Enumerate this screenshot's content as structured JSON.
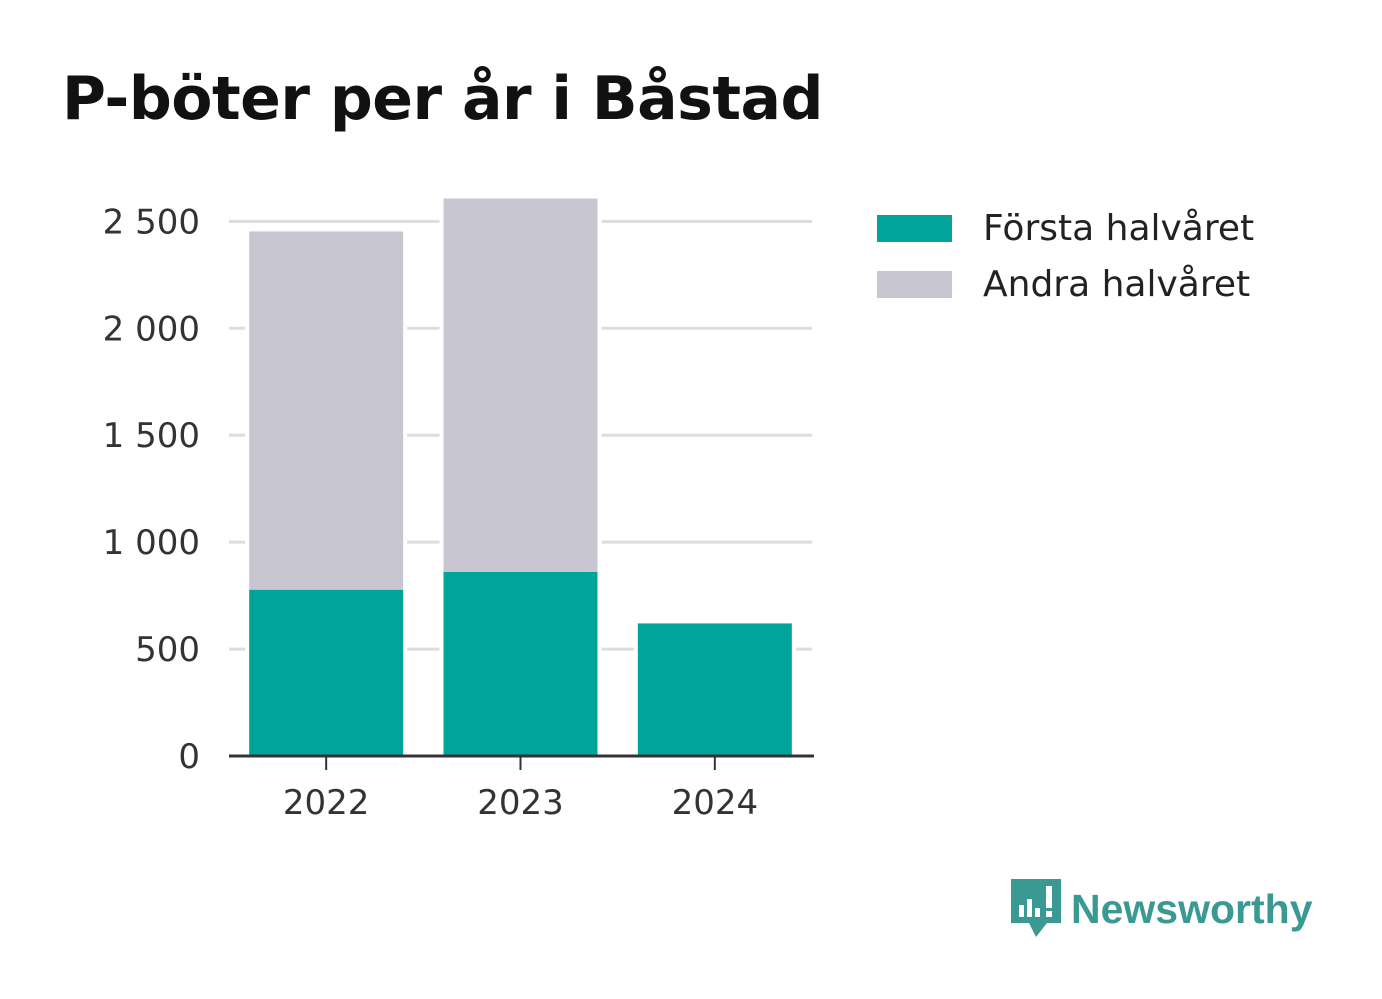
{
  "chart_data": {
    "type": "bar",
    "stacked": true,
    "title": "P-böter per år i Båstad",
    "xlabel": "",
    "ylabel": "",
    "categories": [
      "2022",
      "2023",
      "2024"
    ],
    "series": [
      {
        "name": "Första halvåret",
        "color": "#00a499",
        "values": [
          778,
          862,
          620
        ]
      },
      {
        "name": "Andra halvåret",
        "color": "#c8c7d1",
        "values": [
          1675,
          1745,
          0
        ]
      }
    ],
    "ylim": [
      0,
      2600
    ],
    "yticks": [
      0,
      500,
      1000,
      1500,
      2000,
      2500
    ],
    "ytick_labels": [
      "0",
      "500",
      "1 000",
      "1 500",
      "2 000",
      "2 500"
    ],
    "grid": true,
    "legend_position": "top-right"
  },
  "branding": {
    "label": "Newsworthy",
    "color": "#3a9a93",
    "icon": "speech-bubble-bar-chart-icon"
  }
}
